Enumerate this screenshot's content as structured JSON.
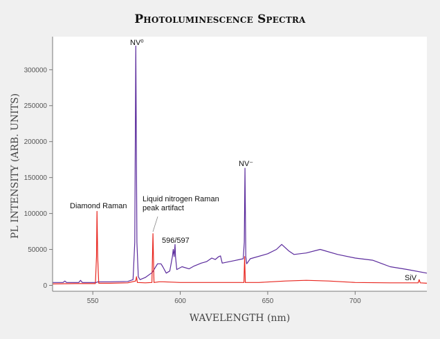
{
  "chart_data": {
    "type": "line",
    "title": "Photoluminescence Spectra",
    "xlabel": "WAVELENGTH (nm)",
    "ylabel": "PL INTENSITY (ARB. UNITS)",
    "xlim": [
      527,
      741
    ],
    "ylim": [
      -8200,
      346000
    ],
    "xticks": [
      550,
      600,
      650,
      700
    ],
    "yticks": [
      0,
      50000,
      100000,
      150000,
      200000,
      250000,
      300000
    ],
    "grid": false,
    "legend": "none",
    "series": [
      {
        "color": "#5a2a9c",
        "x": [
          527,
          533,
          534,
          535,
          542,
          543,
          544,
          552,
          553,
          560,
          570,
          573,
          574,
          574.6,
          575.2,
          576,
          577,
          580,
          584,
          587,
          589,
          590,
          592,
          594,
          595.5,
          596,
          596.5,
          597,
          597.3,
          598,
          601,
          605,
          608,
          610,
          612,
          615,
          618,
          620,
          622,
          623,
          624,
          630,
          636,
          636.6,
          637,
          637.5,
          638,
          640,
          650,
          655,
          658,
          662,
          665,
          672,
          680,
          690,
          700,
          710,
          720,
          730,
          741
        ],
        "y": [
          4000,
          4000,
          6000,
          4000,
          4000,
          7000,
          4000,
          4000,
          5000,
          5000,
          5500,
          8000,
          60000,
          333000,
          60000,
          12000,
          8000,
          11000,
          18000,
          30000,
          30000,
          26000,
          17000,
          20000,
          40000,
          50000,
          40000,
          57000,
          40000,
          22000,
          26000,
          23000,
          27000,
          29000,
          31000,
          33000,
          38000,
          36000,
          40000,
          41000,
          31000,
          34000,
          37000,
          60000,
          163000,
          40000,
          30000,
          37000,
          44000,
          50000,
          57000,
          48000,
          43000,
          45000,
          50000,
          43000,
          38000,
          35000,
          26000,
          22000,
          17000
        ]
      },
      {
        "color": "#e8251e",
        "x": [
          527,
          540,
          551.5,
          552.1,
          552.4,
          552.8,
          553.4,
          560,
          570,
          574.5,
          575,
          575.5,
          580,
          583.8,
          584.4,
          585,
          588,
          590,
          600,
          620,
          636.4,
          636.8,
          637.2,
          645,
          660,
          672,
          685,
          700,
          720,
          736,
          736.6,
          737.2,
          741
        ],
        "y": [
          2000,
          2500,
          2500,
          40000,
          103000,
          40000,
          3000,
          3000,
          3500,
          6000,
          12000,
          4000,
          3500,
          4000,
          72000,
          4000,
          5000,
          5000,
          4000,
          4000,
          4000,
          40000,
          4000,
          4000,
          6000,
          7000,
          6000,
          4000,
          3500,
          3500,
          8000,
          3500,
          3000
        ]
      }
    ],
    "annotations": [
      {
        "text": "NV⁰",
        "x": 575
      },
      {
        "text": "Diamond Raman",
        "x": 552.4
      },
      {
        "text": "Liquid nitrogen Raman",
        "x": 584.4
      },
      {
        "text": "peak artifact",
        "x": 584.4
      },
      {
        "text": "596/597",
        "x": 596.5
      },
      {
        "text": "NV⁻",
        "x": 637
      },
      {
        "text": "SiV",
        "x": 737
      }
    ]
  }
}
